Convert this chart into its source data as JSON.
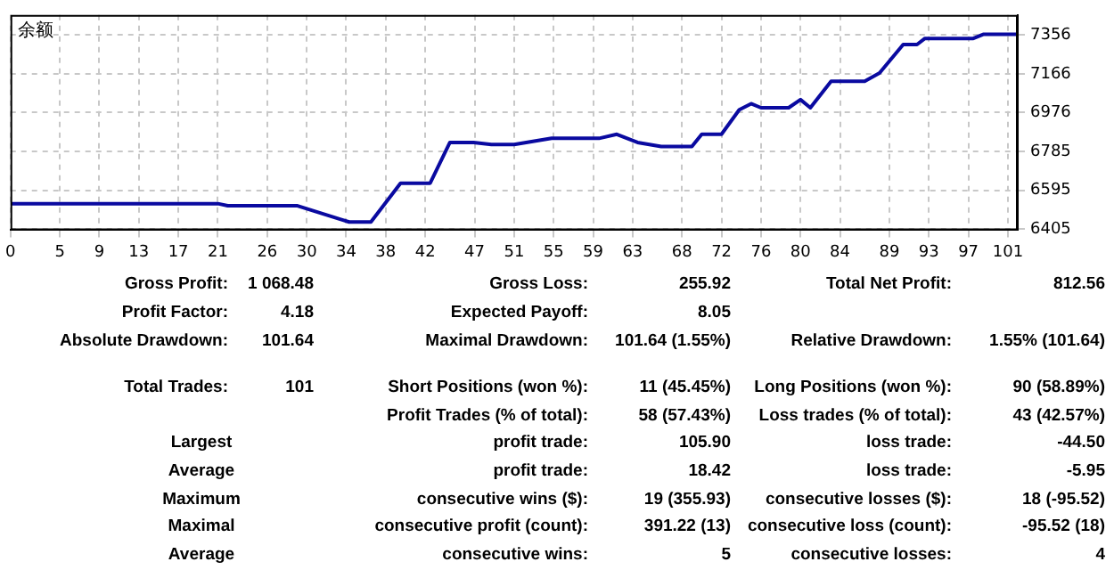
{
  "chart_data": [
    {
      "type": "line",
      "ylabel": "余额",
      "xlim": [
        0,
        102
      ],
      "xticks": [
        0,
        5,
        9,
        13,
        17,
        21,
        26,
        30,
        34,
        38,
        42,
        47,
        51,
        55,
        59,
        63,
        68,
        72,
        76,
        80,
        84,
        89,
        93,
        97,
        101
      ],
      "ylim": [
        6400,
        7455
      ],
      "yticks": [
        6405,
        6595,
        6785,
        6976,
        7166,
        7356
      ],
      "grid": true,
      "tick_labels": true,
      "series": [
        {
          "color": "#0a0aa0",
          "x": [
            0,
            5,
            9,
            13,
            21,
            22,
            29,
            33.6,
            34.3,
            36.5,
            39.5,
            42.5,
            44.5,
            46.9,
            48.7,
            51,
            54.8,
            59.6,
            61.4,
            63.5,
            65.9,
            69,
            70,
            72,
            73.8,
            75,
            76,
            78.8,
            80,
            81,
            83.1,
            86.5,
            88,
            90.4,
            91.8,
            92.6,
            97.5,
            98.5,
            102
          ],
          "values": [
            6530,
            6530,
            6530,
            6530,
            6530,
            6520,
            6520,
            6450,
            6440,
            6440,
            6630,
            6630,
            6830,
            6830,
            6820,
            6820,
            6850,
            6850,
            6870,
            6830,
            6810,
            6810,
            6870,
            6870,
            6990,
            7020,
            7000,
            7000,
            7040,
            7000,
            7130,
            7130,
            7170,
            7310,
            7310,
            7340,
            7340,
            7360,
            7360
          ]
        }
      ]
    },
    {
      "type": "other",
      "annotations": [
        "Gross Profit:",
        "1 068.48",
        "Gross Loss:",
        "255.92",
        "Total Net Profit:",
        "812.56",
        "Profit Factor:",
        "4.18",
        "Expected Payoff:",
        "8.05",
        "Absolute Drawdown:",
        "101.64",
        "Maximal Drawdown:",
        "101.64 (1.55%)",
        "Relative Drawdown:",
        "1.55% (101.64)",
        "Total Trades:",
        "101",
        "Short Positions (won %):",
        "11 (45.45%)",
        "Long Positions (won %):",
        "90 (58.89%)",
        "Profit Trades (% of total):",
        "58 (57.43%)",
        "Loss trades (% of total):",
        "43 (42.57%)",
        "Largest",
        "profit trade:",
        "105.90",
        "loss trade:",
        "-44.50",
        "Average",
        "profit trade:",
        "18.42",
        "loss trade:",
        "-5.95",
        "Maximum",
        "consecutive wins ($):",
        "19 (355.93)",
        "consecutive losses ($):",
        "18 (-95.52)",
        "Maximal",
        "consecutive profit (count):",
        "391.22 (13)",
        "consecutive loss (count):",
        "-95.52 (18)",
        "Average",
        "consecutive wins:",
        "5",
        "consecutive losses:",
        "4"
      ]
    }
  ]
}
